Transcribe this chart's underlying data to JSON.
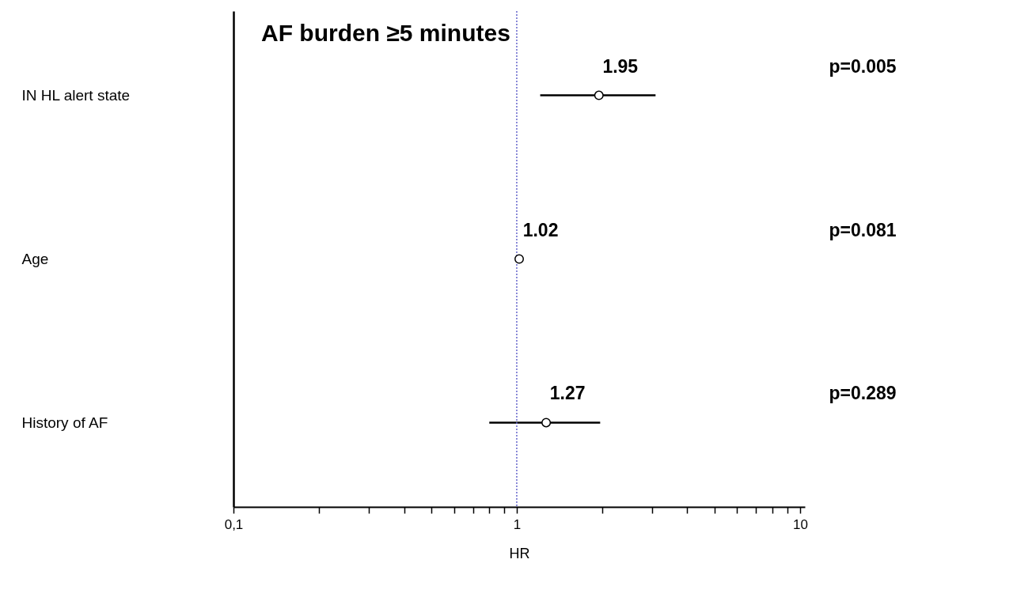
{
  "chart_data": {
    "type": "scatter",
    "title": "AF burden ≥5 minutes",
    "xlabel": "HR",
    "categories": [
      "IN HL alert state",
      "Age",
      "History of AF"
    ],
    "values": [
      1.95,
      1.02,
      1.27
    ],
    "errors": [
      [
        1.21,
        3.09
      ],
      null,
      [
        0.8,
        1.97
      ]
    ],
    "orientation": "horizontal",
    "color": "#ffffff",
    "marker": "circle",
    "data_labels": true,
    "log": "x",
    "grid": false,
    "xlim": [
      0.1,
      10.4
    ],
    "xticks": [
      {
        "value": 0.1,
        "label": "0,1"
      },
      {
        "value": 0.2,
        "label": null
      },
      {
        "value": 0.3,
        "label": null
      },
      {
        "value": 0.4,
        "label": null
      },
      {
        "value": 0.5,
        "label": null
      },
      {
        "value": 0.6,
        "label": null
      },
      {
        "value": 0.7,
        "label": null
      },
      {
        "value": 0.8,
        "label": null
      },
      {
        "value": 0.9,
        "label": null
      },
      {
        "value": 1,
        "label": "1"
      },
      {
        "value": 2,
        "label": null
      },
      {
        "value": 3,
        "label": null
      },
      {
        "value": 4,
        "label": null
      },
      {
        "value": 5,
        "label": null
      },
      {
        "value": 6,
        "label": null
      },
      {
        "value": 7,
        "label": null
      },
      {
        "value": 8,
        "label": null
      },
      {
        "value": 9,
        "label": null
      },
      {
        "value": 10,
        "label": "10"
      }
    ],
    "ref_lines": [
      {
        "axis": "x",
        "value": 1,
        "color": "#6666cc",
        "line_style": "dotted"
      }
    ],
    "annotations": [
      "p=0.005",
      "p=0.081",
      "p=0.289"
    ]
  }
}
